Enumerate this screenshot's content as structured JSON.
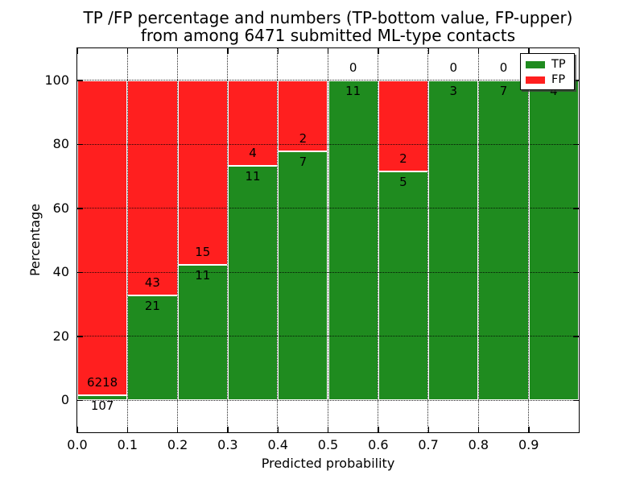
{
  "title": {
    "line1": "TP /FP percentage and numbers (TP-bottom value, FP-upper)",
    "line2": "from among 6471 submitted ML-type contacts"
  },
  "axes": {
    "x_label": "Predicted probability",
    "y_label": "Percentage",
    "x_tick_labels": [
      "0.0",
      "0.1",
      "0.2",
      "0.3",
      "0.4",
      "0.5",
      "0.6",
      "0.7",
      "0.8",
      "0.9"
    ],
    "y_tick_labels": [
      "0",
      "20",
      "40",
      "60",
      "80",
      "100"
    ],
    "y_tick_values": [
      0,
      20,
      40,
      60,
      80,
      100
    ],
    "x_tick_values": [
      0,
      0.1,
      0.2,
      0.3,
      0.4,
      0.5,
      0.6,
      0.7,
      0.8,
      0.9
    ]
  },
  "legend": {
    "position": "upper right",
    "entries": [
      {
        "label": "TP",
        "color": "#1f8b1f"
      },
      {
        "label": "FP",
        "color": "#ff1f1f"
      }
    ]
  },
  "colors": {
    "tp": "#1f8b1f",
    "fp": "#ff1f1f",
    "grid": "#000000",
    "background": "#ffffff"
  },
  "chart_data": {
    "type": "bar",
    "stacked": true,
    "title": "TP /FP percentage and numbers (TP-bottom value, FP-upper) from among 6471 submitted ML-type contacts",
    "xlabel": "Predicted probability",
    "ylabel": "Percentage",
    "xlim": [
      0.0,
      1.0
    ],
    "ylim": [
      -10,
      110
    ],
    "grid": true,
    "legend_position": "upper right",
    "bin_width": 0.1,
    "total_submitted": 6471,
    "bins": [
      {
        "x_start": 0.0,
        "x_end": 0.1,
        "tp": 107,
        "fp": 6218,
        "tp_pct": 1.69,
        "fp_pct": 98.31
      },
      {
        "x_start": 0.1,
        "x_end": 0.2,
        "tp": 21,
        "fp": 43,
        "tp_pct": 32.81,
        "fp_pct": 67.19
      },
      {
        "x_start": 0.2,
        "x_end": 0.3,
        "tp": 11,
        "fp": 15,
        "tp_pct": 42.31,
        "fp_pct": 57.69
      },
      {
        "x_start": 0.3,
        "x_end": 0.4,
        "tp": 11,
        "fp": 4,
        "tp_pct": 73.33,
        "fp_pct": 26.67
      },
      {
        "x_start": 0.4,
        "x_end": 0.5,
        "tp": 7,
        "fp": 2,
        "tp_pct": 77.78,
        "fp_pct": 22.22
      },
      {
        "x_start": 0.5,
        "x_end": 0.6,
        "tp": 11,
        "fp": 0,
        "tp_pct": 100,
        "fp_pct": 0
      },
      {
        "x_start": 0.6,
        "x_end": 0.7,
        "tp": 5,
        "fp": 2,
        "tp_pct": 71.43,
        "fp_pct": 28.57
      },
      {
        "x_start": 0.7,
        "x_end": 0.8,
        "tp": 3,
        "fp": 0,
        "tp_pct": 100,
        "fp_pct": 0
      },
      {
        "x_start": 0.8,
        "x_end": 0.9,
        "tp": 7,
        "fp": 0,
        "tp_pct": 100,
        "fp_pct": 0
      },
      {
        "x_start": 0.9,
        "x_end": 1.0,
        "tp": 4,
        "fp": 0,
        "tp_pct": 100,
        "fp_pct": 0
      }
    ],
    "series": [
      {
        "name": "TP",
        "color": "#1f8b1f",
        "values": [
          107,
          21,
          11,
          11,
          7,
          11,
          5,
          3,
          7,
          4
        ]
      },
      {
        "name": "FP",
        "color": "#ff1f1f",
        "values": [
          6218,
          43,
          15,
          4,
          2,
          0,
          2,
          0,
          0,
          0
        ]
      }
    ]
  }
}
